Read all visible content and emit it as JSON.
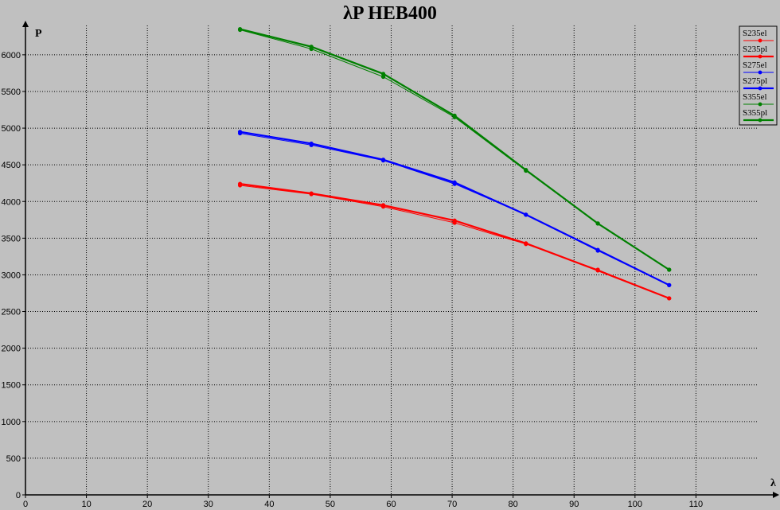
{
  "chart_data": {
    "type": "line",
    "title": "λP HEB400",
    "xlabel": "λ",
    "ylabel": "P",
    "xlim": [
      0,
      120
    ],
    "ylim": [
      0,
      6400
    ],
    "x_ticks": [
      0,
      10,
      20,
      30,
      40,
      50,
      60,
      70,
      80,
      90,
      100,
      110
    ],
    "y_ticks": [
      0,
      500,
      1000,
      1500,
      2000,
      2500,
      3000,
      3500,
      4000,
      4500,
      5000,
      5500,
      6000
    ],
    "grid": true,
    "legend_position": "top-right",
    "series": [
      {
        "name": "S235el",
        "color": "#ff0000",
        "weight": "thin",
        "x": [
          35.2,
          46.9,
          58.7,
          70.4,
          82.1,
          93.9,
          105.6
        ],
        "y": [
          4220,
          4100,
          3930,
          3710,
          3420,
          3070,
          2680
        ]
      },
      {
        "name": "S235pl",
        "color": "#ff0000",
        "weight": "thick",
        "x": [
          35.2,
          46.9,
          58.7,
          70.4,
          82.1,
          93.9,
          105.6
        ],
        "y": [
          4240,
          4110,
          3950,
          3740,
          3430,
          3060,
          2680
        ]
      },
      {
        "name": "S275el",
        "color": "#0000ff",
        "weight": "thin",
        "x": [
          35.2,
          46.9,
          58.7,
          70.4,
          82.1,
          93.9,
          105.6
        ],
        "y": [
          4930,
          4770,
          4560,
          4240,
          3820,
          3330,
          2860
        ]
      },
      {
        "name": "S275pl",
        "color": "#0000ff",
        "weight": "thick",
        "x": [
          35.2,
          46.9,
          58.7,
          70.4,
          82.1,
          93.9,
          105.6
        ],
        "y": [
          4950,
          4790,
          4570,
          4260,
          3820,
          3340,
          2860
        ]
      },
      {
        "name": "S355el",
        "color": "#008000",
        "weight": "thin",
        "x": [
          35.2,
          46.9,
          58.7,
          70.4,
          82.1,
          93.9,
          105.6
        ],
        "y": [
          6340,
          6080,
          5700,
          5150,
          4420,
          3700,
          3070
        ]
      },
      {
        "name": "S355pl",
        "color": "#008000",
        "weight": "thick",
        "x": [
          35.2,
          46.9,
          58.7,
          70.4,
          82.1,
          93.9,
          105.6
        ],
        "y": [
          6350,
          6110,
          5740,
          5170,
          4430,
          3700,
          3070
        ]
      }
    ]
  }
}
